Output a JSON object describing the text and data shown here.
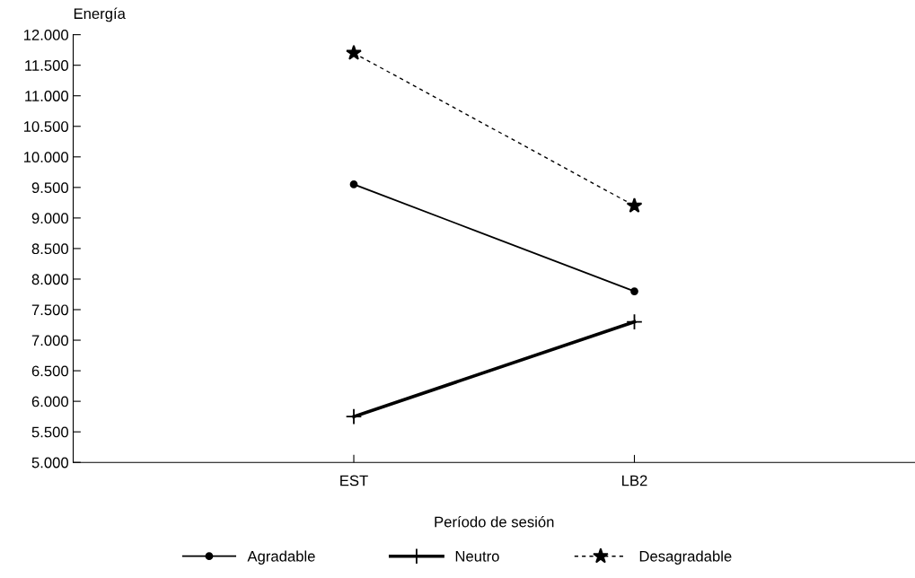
{
  "chart_data": {
    "type": "line",
    "ylabel": "Energía",
    "xlabel": "Período de sesión",
    "categories": [
      "EST",
      "LB2"
    ],
    "ylim": [
      5000,
      12000
    ],
    "yticks": [
      {
        "value": 5000,
        "label": "5.000"
      },
      {
        "value": 5500,
        "label": "5.500"
      },
      {
        "value": 6000,
        "label": "6.000"
      },
      {
        "value": 6500,
        "label": "6.500"
      },
      {
        "value": 7000,
        "label": "7.000"
      },
      {
        "value": 7500,
        "label": "7.500"
      },
      {
        "value": 8000,
        "label": "8.000"
      },
      {
        "value": 8500,
        "label": "8.500"
      },
      {
        "value": 9000,
        "label": "9.000"
      },
      {
        "value": 9500,
        "label": "9.500"
      },
      {
        "value": 10000,
        "label": "10.000"
      },
      {
        "value": 10500,
        "label": "10.500"
      },
      {
        "value": 11000,
        "label": "11.000"
      },
      {
        "value": 11500,
        "label": "11.500"
      },
      {
        "value": 12000,
        "label": "12.000"
      }
    ],
    "series": [
      {
        "name": "Agradable",
        "color": "#000000",
        "values": [
          9550,
          7800
        ],
        "marker": "circle",
        "line_style": "solid"
      },
      {
        "name": "Neutro",
        "color": "#000000",
        "values": [
          5750,
          7300
        ],
        "marker": "cross",
        "line_style": "solid"
      },
      {
        "name": "Desagradable",
        "color": "#000000",
        "values": [
          11700,
          9200
        ],
        "marker": "star",
        "line_style": "dashed"
      }
    ],
    "grid": false,
    "legend": "bottom"
  }
}
